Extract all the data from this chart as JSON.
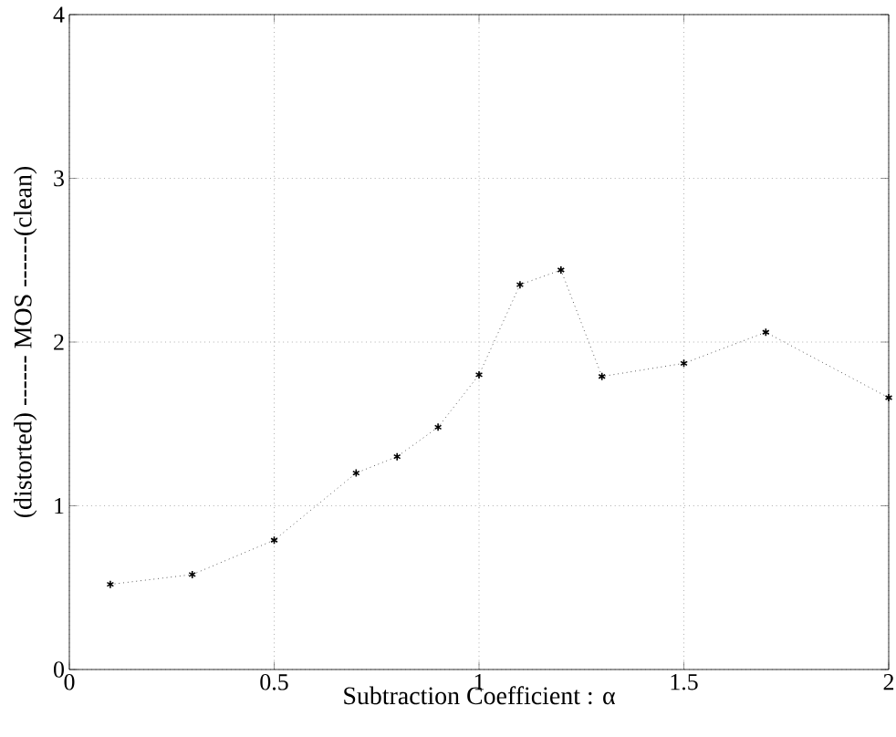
{
  "chart_data": {
    "type": "line",
    "xlabel": "Subtraction Coefficient :  α",
    "ylabel": "(distorted) ------ MOS ------(clean)",
    "x": [
      0.1,
      0.3,
      0.5,
      0.7,
      0.8,
      0.9,
      1.0,
      1.1,
      1.2,
      1.3,
      1.5,
      1.7,
      2.0
    ],
    "series": [
      {
        "color": "#000000",
        "values": [
          0.52,
          0.58,
          0.79,
          1.2,
          1.3,
          1.48,
          1.8,
          2.35,
          2.44,
          1.79,
          1.87,
          2.06,
          1.66
        ]
      }
    ],
    "xlim": [
      0,
      2
    ],
    "ylim": [
      0,
      4
    ],
    "xticks": [
      0,
      0.5,
      1,
      1.5,
      2
    ],
    "yticks": [
      0,
      1,
      2,
      3,
      4
    ],
    "grid": true,
    "marker": "cross",
    "line_style": "dotted"
  }
}
